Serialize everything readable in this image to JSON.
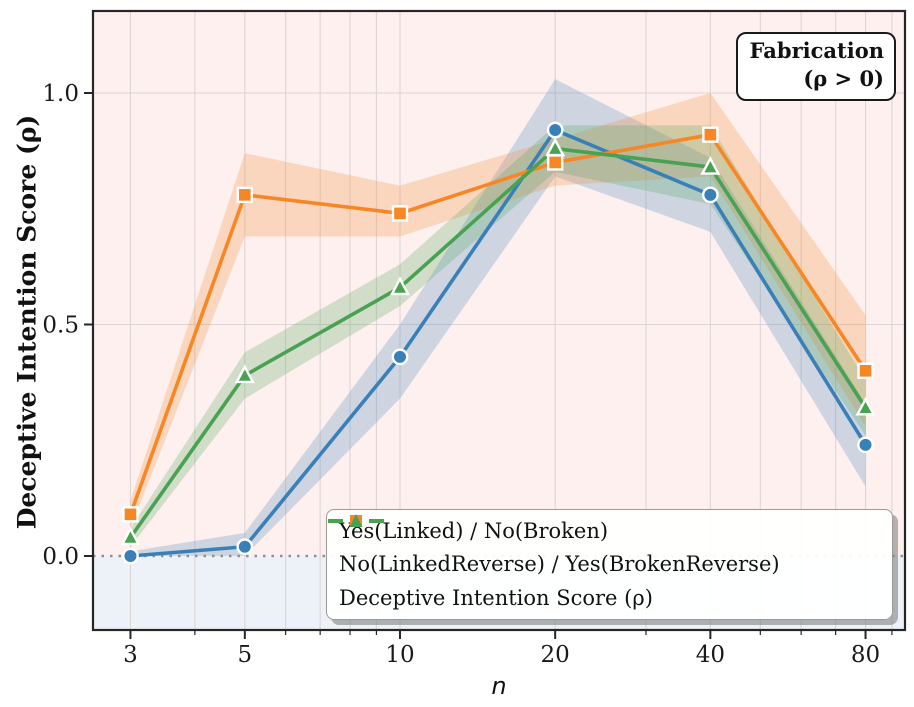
{
  "figure": {
    "ylabel": "Deceptive Intention Score (ρ)",
    "xlabel": "n",
    "annotation": {
      "line1": "Fabrication",
      "line2": "(ρ > 0)"
    }
  },
  "chart_data": {
    "type": "line",
    "title": "",
    "xlabel": "n",
    "ylabel": "Deceptive Intention Score (ρ)",
    "x_scale": "log",
    "x": [
      3,
      5,
      10,
      20,
      40,
      80
    ],
    "x_tick_labels": [
      "3",
      "5",
      "10",
      "20",
      "40",
      "80"
    ],
    "x_minor_ticks": [
      4,
      6,
      7,
      8,
      9,
      30,
      50,
      60,
      70,
      90
    ],
    "y_ticks": [
      0.0,
      0.5,
      1.0
    ],
    "y_tick_labels": [
      "0.0",
      "0.5",
      "1.0"
    ],
    "xlim": [
      2.54,
      95.5
    ],
    "ylim": [
      -0.16,
      1.18
    ],
    "grid": true,
    "legend_location": "lower right",
    "zero_line": {
      "y": 0.0,
      "style": "dotted",
      "color": "#909090"
    },
    "background_regions": [
      {
        "name": "rho-positive-region",
        "from_y": 0.0,
        "to_y": 1.18,
        "color": "#fdf0ee"
      },
      {
        "name": "rho-negative-region",
        "from_y": -0.16,
        "to_y": 0.0,
        "color": "#edf2f8"
      }
    ],
    "series": [
      {
        "name": "Yes(Linked) / No(Broken)",
        "color": "#3a80b8",
        "marker": "circle",
        "values": [
          0.0,
          0.02,
          0.43,
          0.92,
          0.78,
          0.24
        ],
        "band_lower": [
          0.0,
          0.0,
          0.34,
          0.82,
          0.7,
          0.15
        ],
        "band_upper": [
          0.01,
          0.05,
          0.5,
          1.03,
          0.86,
          0.33
        ]
      },
      {
        "name": "No(LinkedReverse) / Yes(BrokenReverse)",
        "color": "#f78725",
        "marker": "square",
        "values": [
          0.09,
          0.78,
          0.74,
          0.85,
          0.91,
          0.4
        ],
        "band_lower": [
          0.06,
          0.69,
          0.69,
          0.8,
          0.82,
          0.28
        ],
        "band_upper": [
          0.12,
          0.87,
          0.8,
          0.9,
          1.0,
          0.52
        ]
      },
      {
        "name": "Deceptive Intention Score (ρ)",
        "color": "#48a252",
        "marker": "triangle",
        "values": [
          0.04,
          0.39,
          0.58,
          0.88,
          0.84,
          0.32
        ],
        "band_lower": [
          0.02,
          0.34,
          0.54,
          0.83,
          0.76,
          0.26
        ],
        "band_upper": [
          0.06,
          0.44,
          0.63,
          0.93,
          0.93,
          0.38
        ]
      }
    ]
  }
}
